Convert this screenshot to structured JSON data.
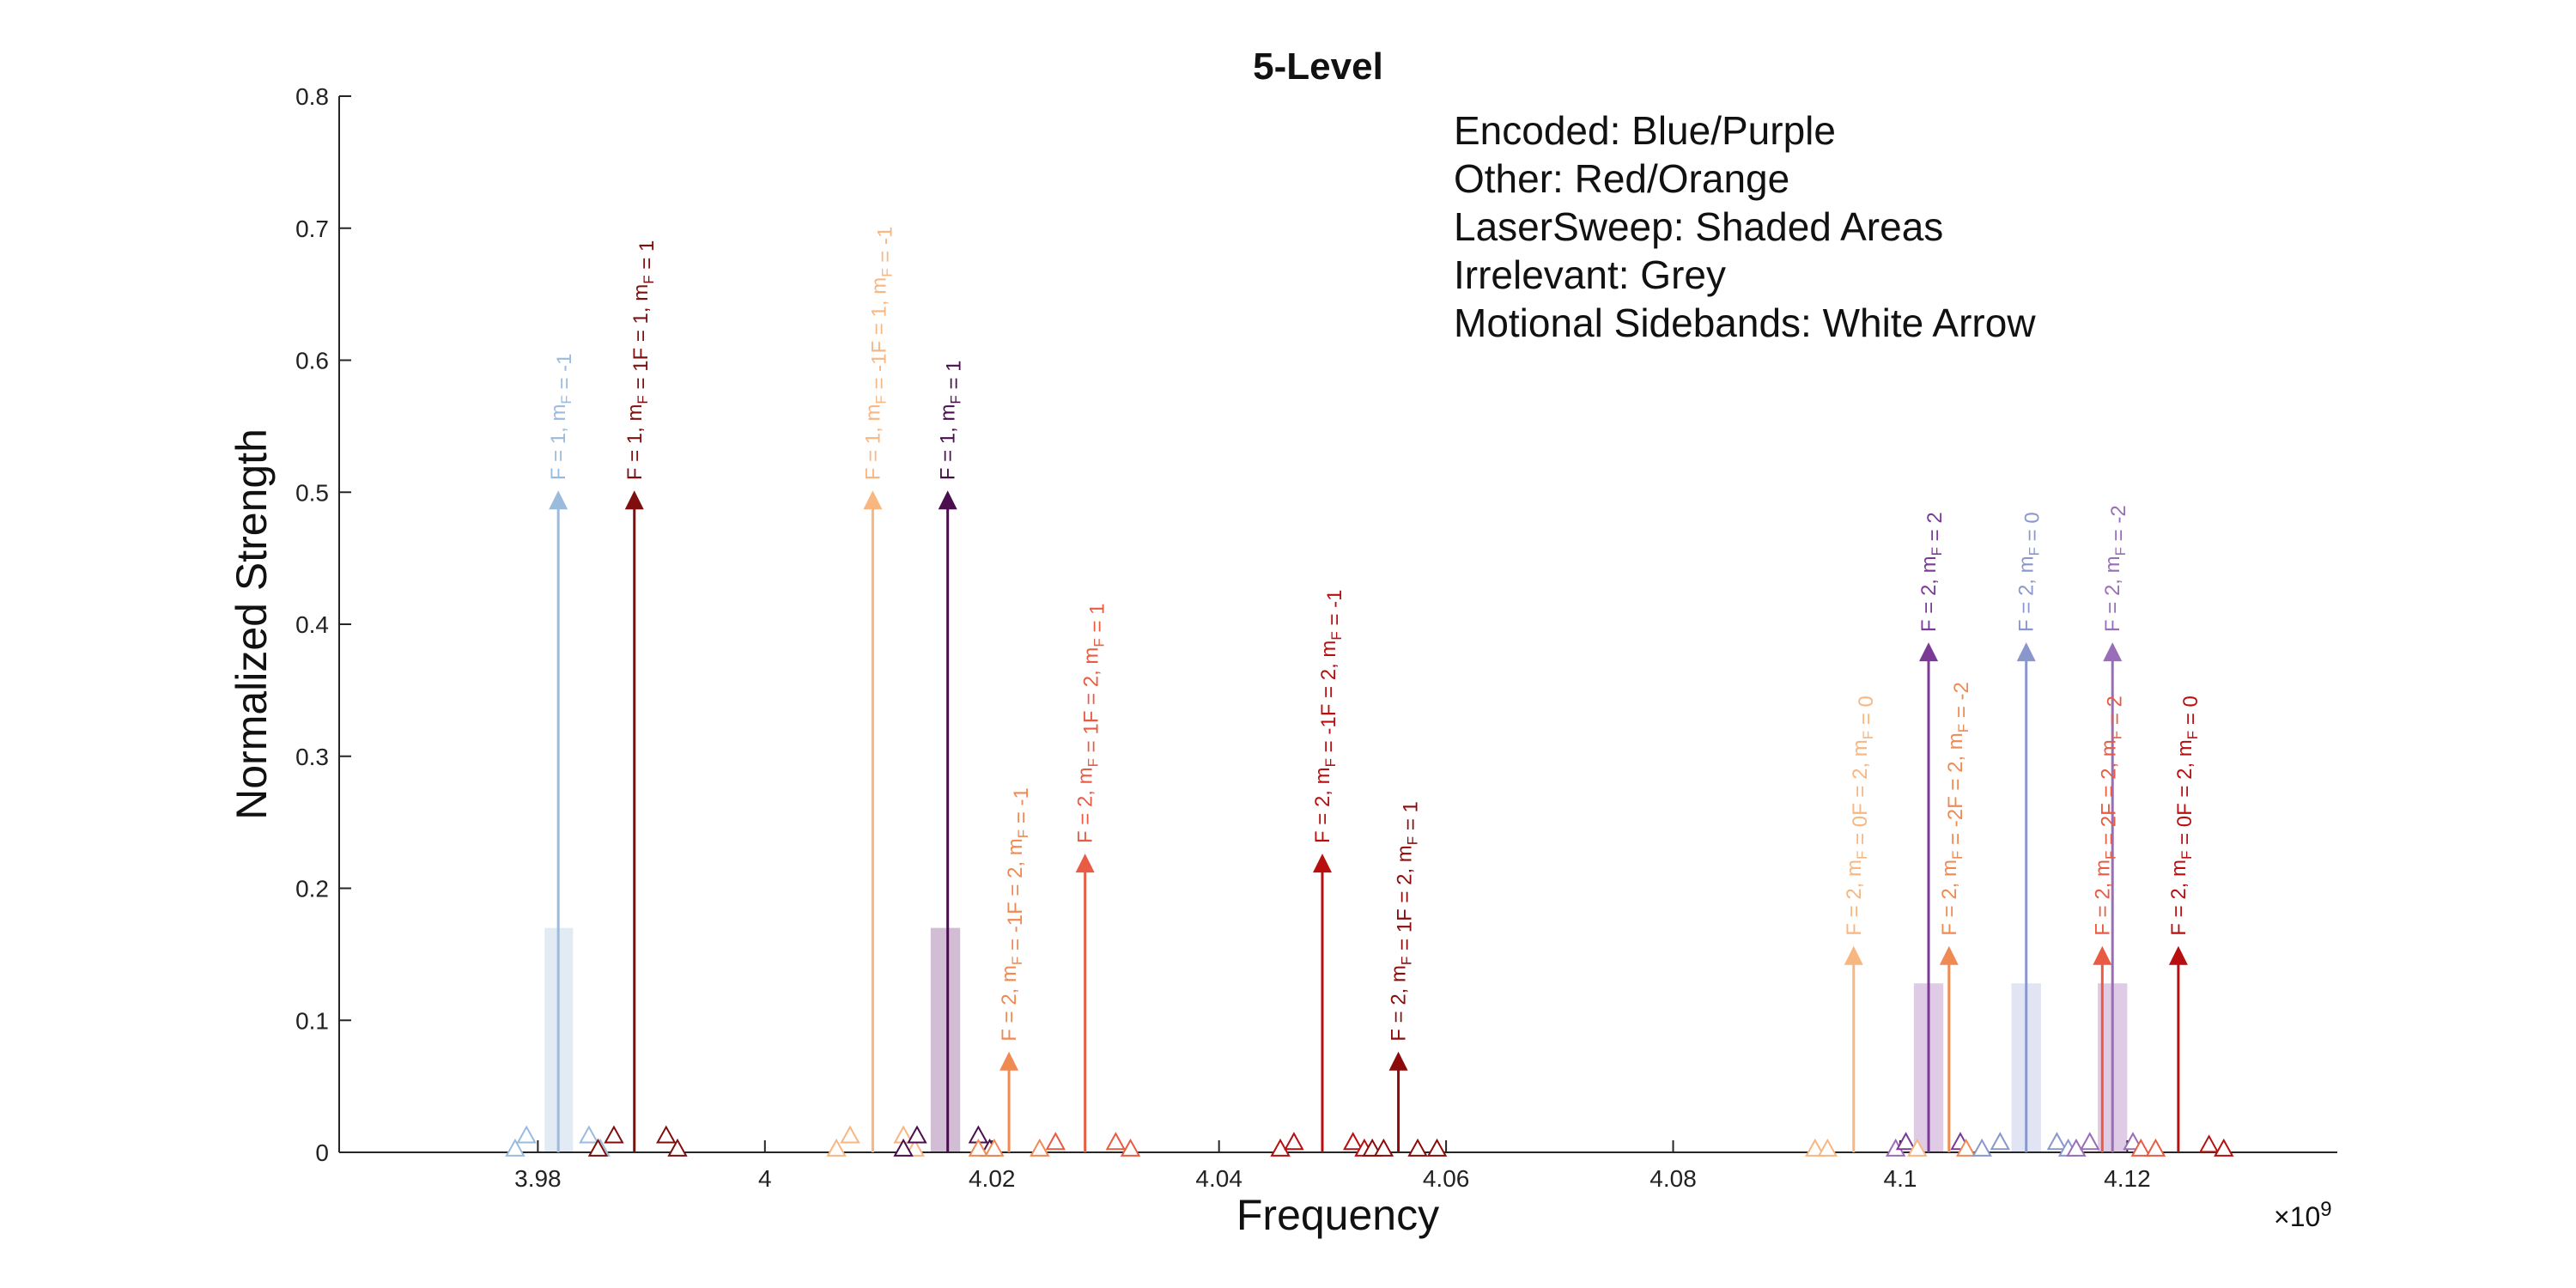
{
  "chart_data": {
    "type": "stem",
    "title": "5-Level",
    "xlabel": "Frequency",
    "ylabel": "Normalized Strength",
    "x_exponent_label": "×10",
    "x_exponent_power": "9",
    "xlim": [
      3.9625,
      4.1385
    ],
    "ylim": [
      0,
      0.8
    ],
    "x_ticks": [
      3.98,
      4,
      4.02,
      4.04,
      4.06,
      4.08,
      4.1,
      4.12
    ],
    "x_tick_labels": [
      "3.98",
      "4",
      "4.02",
      "4.04",
      "4.06",
      "4.08",
      "4.1",
      "4.12"
    ],
    "y_ticks": [
      0,
      0.1,
      0.2,
      0.3,
      0.4,
      0.5,
      0.6,
      0.7,
      0.8
    ],
    "y_tick_labels": [
      "0",
      "0.1",
      "0.2",
      "0.3",
      "0.4",
      "0.5",
      "0.6",
      "0.7",
      "0.8"
    ],
    "annotations": [
      "Encoded: Blue/Purple",
      "Other: Red/Orange",
      "LaserSweep: Shaded Areas",
      "Irrelevant: Grey",
      "Motional Sidebands: White Arrow"
    ],
    "laser_sweep_areas": [
      {
        "x0": 3.9806,
        "x1": 3.9831,
        "height": 0.17,
        "color": "#dde6f2"
      },
      {
        "x0": 4.0146,
        "x1": 4.0172,
        "height": 0.17,
        "color": "#c9b2cc"
      },
      {
        "x0": 4.1012,
        "x1": 4.1038,
        "height": 0.128,
        "color": "#d9c2e2"
      },
      {
        "x0": 4.1098,
        "x1": 4.1124,
        "height": 0.128,
        "color": "#dcdff0"
      },
      {
        "x0": 4.1174,
        "x1": 4.12,
        "height": 0.128,
        "color": "#d9c2e2"
      }
    ],
    "transitions": [
      {
        "x": 3.9818,
        "y": 0.5,
        "color": "#9bbbdc",
        "label": "F = 1, m",
        "sub": "F",
        "tail": " = -1"
      },
      {
        "x": 3.9885,
        "y": 0.5,
        "color": "#7f0f0f",
        "label": "F = 1, m",
        "sub": "F",
        "tail": " = 1F = 1, m",
        "sub2": "F",
        "tail2": " = 1"
      },
      {
        "x": 4.0095,
        "y": 0.5,
        "color": "#f8b680",
        "label": "F = 1, m",
        "sub": "F",
        "tail": " = -1F = 1, m",
        "sub2": "F",
        "tail2": " = -1"
      },
      {
        "x": 4.0161,
        "y": 0.5,
        "color": "#4a0d4e",
        "label": "F = 1, m",
        "sub": "F",
        "tail": " = 1"
      },
      {
        "x": 4.0215,
        "y": 0.075,
        "color": "#f08a53",
        "label": "F = 2, m",
        "sub": "F",
        "tail": " = -1F = 2, m",
        "sub2": "F",
        "tail2": " = -1"
      },
      {
        "x": 4.0282,
        "y": 0.225,
        "color": "#e85c43",
        "label": "F = 2, m",
        "sub": "F",
        "tail": " = 1F = 2, m",
        "sub2": "F",
        "tail2": " = 1"
      },
      {
        "x": 4.0491,
        "y": 0.225,
        "color": "#b70f0f",
        "label": "F = 2, m",
        "sub": "F",
        "tail": " = -1F = 2, m",
        "sub2": "F",
        "tail2": " = -1"
      },
      {
        "x": 4.0558,
        "y": 0.075,
        "color": "#8c0a0a",
        "label": "F = 2, m",
        "sub": "F",
        "tail": " = 1F = 2, m",
        "sub2": "F",
        "tail2": " = 1"
      },
      {
        "x": 4.0959,
        "y": 0.155,
        "color": "#f8b680",
        "label": "F = 2, m",
        "sub": "F",
        "tail": " = 0F = 2, m",
        "sub2": "F",
        "tail2": " = 0"
      },
      {
        "x": 4.1025,
        "y": 0.385,
        "color": "#7b3a96",
        "label": "F = 2, m",
        "sub": "F",
        "tail": " = 2"
      },
      {
        "x": 4.1043,
        "y": 0.155,
        "color": "#f08a53",
        "label": "F = 2, m",
        "sub": "F",
        "tail": " = -2F = 2, m",
        "sub2": "F",
        "tail2": " = -2"
      },
      {
        "x": 4.1111,
        "y": 0.385,
        "color": "#8a97cc",
        "label": "F = 2, m",
        "sub": "F",
        "tail": " = 0"
      },
      {
        "x": 4.1178,
        "y": 0.155,
        "color": "#e85c43",
        "label": "F = 2, m",
        "sub": "F",
        "tail": " = 2F = 2, m",
        "sub2": "F",
        "tail2": " = 2"
      },
      {
        "x": 4.1187,
        "y": 0.385,
        "color": "#9a6db8",
        "label": "F = 2, m",
        "sub": "F",
        "tail": " = -2"
      },
      {
        "x": 4.1245,
        "y": 0.155,
        "color": "#b70f0f",
        "label": "F = 2, m",
        "sub": "F",
        "tail": " = 0F = 2, m",
        "sub2": "F",
        "tail2": " = 0"
      }
    ],
    "sideband_markers": [
      {
        "x": 3.978,
        "y": 0.002,
        "color": "#9bbbdc"
      },
      {
        "x": 3.979,
        "y": 0.012,
        "color": "#9bbbdc"
      },
      {
        "x": 3.9845,
        "y": 0.012,
        "color": "#9bbbdc"
      },
      {
        "x": 3.9855,
        "y": 0.002,
        "color": "#9bbbdc"
      },
      {
        "x": 3.9853,
        "y": 0.002,
        "color": "#7f0f0f"
      },
      {
        "x": 3.9867,
        "y": 0.012,
        "color": "#7f0f0f"
      },
      {
        "x": 3.9913,
        "y": 0.012,
        "color": "#7f0f0f"
      },
      {
        "x": 3.9923,
        "y": 0.002,
        "color": "#7f0f0f"
      },
      {
        "x": 4.0063,
        "y": 0.002,
        "color": "#f8b680"
      },
      {
        "x": 4.0075,
        "y": 0.012,
        "color": "#f8b680"
      },
      {
        "x": 4.0122,
        "y": 0.012,
        "color": "#f8b680"
      },
      {
        "x": 4.0132,
        "y": 0.002,
        "color": "#f8b680"
      },
      {
        "x": 4.0122,
        "y": 0.002,
        "color": "#4a0d4e"
      },
      {
        "x": 4.0134,
        "y": 0.012,
        "color": "#4a0d4e"
      },
      {
        "x": 4.0188,
        "y": 0.012,
        "color": "#4a0d4e"
      },
      {
        "x": 4.0198,
        "y": 0.002,
        "color": "#4a0d4e"
      },
      {
        "x": 4.0188,
        "y": 0.002,
        "color": "#f08a53"
      },
      {
        "x": 4.0202,
        "y": 0.002,
        "color": "#f08a53"
      },
      {
        "x": 4.0242,
        "y": 0.002,
        "color": "#f08a53"
      },
      {
        "x": 4.0256,
        "y": 0.007,
        "color": "#e85c43"
      },
      {
        "x": 4.0309,
        "y": 0.007,
        "color": "#e85c43"
      },
      {
        "x": 4.0322,
        "y": 0.002,
        "color": "#e85c43"
      },
      {
        "x": 4.0454,
        "y": 0.002,
        "color": "#b70f0f"
      },
      {
        "x": 4.0466,
        "y": 0.007,
        "color": "#b70f0f"
      },
      {
        "x": 4.0518,
        "y": 0.007,
        "color": "#b70f0f"
      },
      {
        "x": 4.0528,
        "y": 0.002,
        "color": "#b70f0f"
      },
      {
        "x": 4.0535,
        "y": 0.002,
        "color": "#8c0a0a"
      },
      {
        "x": 4.0545,
        "y": 0.002,
        "color": "#8c0a0a"
      },
      {
        "x": 4.0575,
        "y": 0.002,
        "color": "#8c0a0a"
      },
      {
        "x": 4.0592,
        "y": 0.002,
        "color": "#8c0a0a"
      },
      {
        "x": 4.0925,
        "y": 0.002,
        "color": "#f8b680"
      },
      {
        "x": 4.0936,
        "y": 0.002,
        "color": "#f8b680"
      },
      {
        "x": 4.0996,
        "y": 0.002,
        "color": "#9a6db8"
      },
      {
        "x": 4.1005,
        "y": 0.007,
        "color": "#7b3a96"
      },
      {
        "x": 4.1015,
        "y": 0.002,
        "color": "#f8b680"
      },
      {
        "x": 4.1053,
        "y": 0.007,
        "color": "#7b3a96"
      },
      {
        "x": 4.1058,
        "y": 0.002,
        "color": "#f08a53"
      },
      {
        "x": 4.1072,
        "y": 0.002,
        "color": "#8a97cc"
      },
      {
        "x": 4.1088,
        "y": 0.007,
        "color": "#8a97cc"
      },
      {
        "x": 4.1138,
        "y": 0.007,
        "color": "#8a97cc"
      },
      {
        "x": 4.1148,
        "y": 0.002,
        "color": "#8a97cc"
      },
      {
        "x": 4.1155,
        "y": 0.002,
        "color": "#9a6db8"
      },
      {
        "x": 4.1167,
        "y": 0.007,
        "color": "#9a6db8"
      },
      {
        "x": 4.1205,
        "y": 0.007,
        "color": "#9a6db8"
      },
      {
        "x": 4.1212,
        "y": 0.002,
        "color": "#e85c43"
      },
      {
        "x": 4.1225,
        "y": 0.002,
        "color": "#e85c43"
      },
      {
        "x": 4.1272,
        "y": 0.005,
        "color": "#b70f0f"
      },
      {
        "x": 4.1285,
        "y": 0.002,
        "color": "#b70f0f"
      }
    ]
  }
}
